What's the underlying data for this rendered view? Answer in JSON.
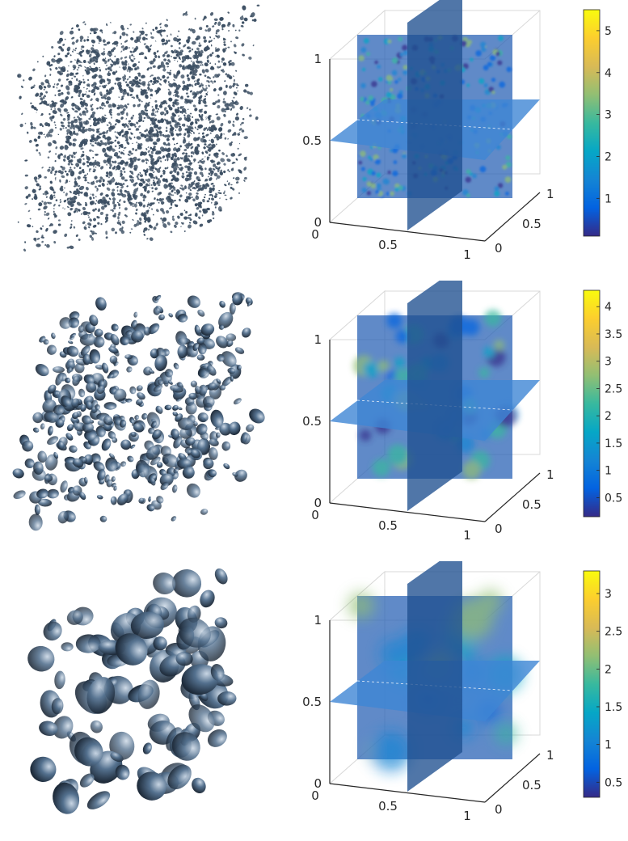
{
  "panels": [
    {
      "axis_ticks": {
        "z": [
          "0",
          "0.5",
          "1"
        ],
        "x": [
          "0",
          "0.5",
          "1"
        ],
        "y": [
          "0",
          "0.5",
          "1"
        ]
      },
      "colorbar": {
        "ticks": [
          "1",
          "2",
          "3",
          "4",
          "5"
        ],
        "min": 0.1,
        "max": 5.5
      }
    },
    {
      "axis_ticks": {
        "z": [
          "0",
          "0.5",
          "1"
        ],
        "x": [
          "0",
          "0.5",
          "1"
        ],
        "y": [
          "0",
          "0.5",
          "1"
        ]
      },
      "colorbar": {
        "ticks": [
          "0.5",
          "1",
          "1.5",
          "2",
          "2.5",
          "3",
          "3.5",
          "4"
        ],
        "min": 0.15,
        "max": 4.3
      }
    },
    {
      "axis_ticks": {
        "z": [
          "0",
          "0.5",
          "1"
        ],
        "x": [
          "0",
          "0.5",
          "1"
        ],
        "y": [
          "0",
          "0.5",
          "1"
        ]
      },
      "colorbar": {
        "ticks": [
          "0.5",
          "1",
          "1.5",
          "2",
          "2.5",
          "3"
        ],
        "min": 0.3,
        "max": 3.3
      }
    }
  ],
  "colors": {
    "isosurface": "#3c4f63",
    "slice_base": "#2b63b6",
    "parula": [
      "#352a87",
      "#0363e1",
      "#1485d4",
      "#06a7c6",
      "#38b99e",
      "#92bf73",
      "#d9ba56",
      "#fcce2e",
      "#f9fb0e"
    ]
  }
}
